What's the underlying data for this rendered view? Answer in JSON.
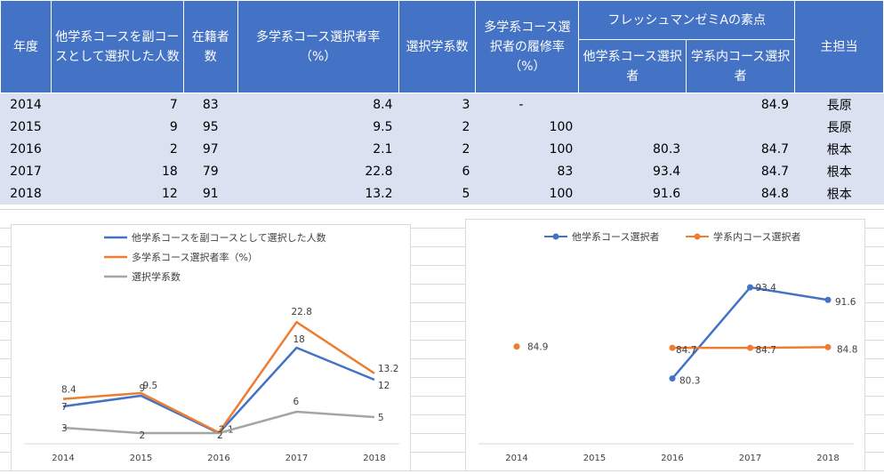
{
  "table": {
    "headers": {
      "year": "年度",
      "other_sub": "他学系コースを副コースとして選択した人数",
      "enrolled": "在籍者数",
      "multi_rate": "多学系コース選択者率（%）",
      "num_depts": "選択学系数",
      "completion": "多学系コース選択者の履修率（%）",
      "group": "フレッシュマンゼミAの素点",
      "sub_other": "他学系コース選択者",
      "sub_inner": "学系内コース選択者",
      "person": "主担当"
    },
    "rows": [
      {
        "year": "2014",
        "other_sub": "7",
        "enrolled": "83",
        "multi_rate": "8.4",
        "num_depts": "3",
        "completion": "-",
        "other_score": "",
        "inner_score": "84.9",
        "person": "長原"
      },
      {
        "year": "2015",
        "other_sub": "9",
        "enrolled": "95",
        "multi_rate": "9.5",
        "num_depts": "2",
        "completion": "100",
        "other_score": "",
        "inner_score": "",
        "person": "長原"
      },
      {
        "year": "2016",
        "other_sub": "2",
        "enrolled": "97",
        "multi_rate": "2.1",
        "num_depts": "2",
        "completion": "100",
        "other_score": "80.3",
        "inner_score": "84.7",
        "person": "根本"
      },
      {
        "year": "2017",
        "other_sub": "18",
        "enrolled": "79",
        "multi_rate": "22.8",
        "num_depts": "6",
        "completion": "83",
        "other_score": "93.4",
        "inner_score": "84.7",
        "person": "根本"
      },
      {
        "year": "2018",
        "other_sub": "12",
        "enrolled": "91",
        "multi_rate": "13.2",
        "num_depts": "5",
        "completion": "100",
        "other_score": "91.6",
        "inner_score": "84.8",
        "person": "根本"
      }
    ]
  },
  "chart_data": [
    {
      "type": "line",
      "categories": [
        "2014",
        "2015",
        "2016",
        "2017",
        "2018"
      ],
      "series": [
        {
          "name": "他学系コースを副コースとして選択した人数",
          "color": "#4472c4",
          "values": [
            7,
            9,
            2,
            18,
            12
          ]
        },
        {
          "name": "多学系コース選択者率（%）",
          "color": "#ed7d31",
          "values": [
            8.4,
            9.5,
            2.1,
            22.8,
            13.2
          ]
        },
        {
          "name": "選択学系数",
          "color": "#a5a5a5",
          "values": [
            3,
            2,
            2,
            6,
            5
          ]
        }
      ],
      "ylim": [
        0,
        25
      ],
      "grid": false,
      "legend": "top"
    },
    {
      "type": "line",
      "categories": [
        "2014",
        "2015",
        "2016",
        "2017",
        "2018"
      ],
      "series": [
        {
          "name": "他学系コース選択者",
          "color": "#4472c4",
          "values": [
            null,
            null,
            80.3,
            93.4,
            91.6
          ]
        },
        {
          "name": "学系内コース選択者",
          "color": "#ed7d31",
          "values": [
            84.9,
            null,
            84.7,
            84.7,
            84.8
          ]
        }
      ],
      "ylim": [
        75,
        97
      ],
      "grid": false,
      "legend": "top"
    }
  ]
}
